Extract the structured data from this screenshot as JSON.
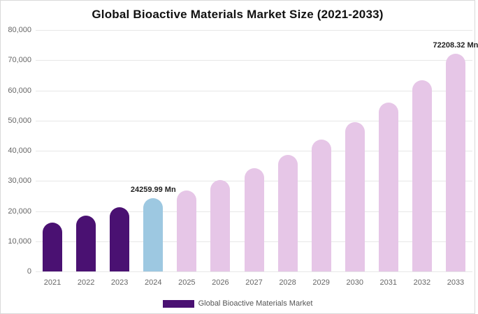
{
  "chart_data": {
    "type": "bar",
    "title": "Global Bioactive Materials Market Size (2021-2033)",
    "legend": "Global Bioactive Materials Market",
    "categories": [
      "2021",
      "2022",
      "2023",
      "2024",
      "2025",
      "2026",
      "2027",
      "2028",
      "2029",
      "2030",
      "2031",
      "2032",
      "2033"
    ],
    "values": [
      16300,
      18600,
      21200,
      24259.99,
      26900,
      30300,
      34200,
      38600,
      43800,
      49500,
      56000,
      63300,
      72208.32
    ],
    "bar_colors": [
      "#4a1172",
      "#4a1172",
      "#4a1172",
      "#9dc8e1",
      "#e6c6e7",
      "#e6c6e7",
      "#e6c6e7",
      "#e6c6e7",
      "#e6c6e7",
      "#e6c6e7",
      "#e6c6e7",
      "#e6c6e7",
      "#e6c6e7"
    ],
    "yticks": [
      "0",
      "10,000",
      "20,000",
      "30,000",
      "40,000",
      "50,000",
      "60,000",
      "70,000",
      "80,000"
    ],
    "ylim": [
      0,
      80000
    ],
    "xlabel": "",
    "ylabel": "",
    "grid": "horizontal",
    "legend_position": "bottom",
    "annotations": [
      {
        "category": "2024",
        "text": "24259.99 Mn"
      },
      {
        "category": "2033",
        "text": "72208.32 Mn"
      }
    ],
    "colors": {
      "historical": "#4a1172",
      "highlight": "#9dc8e1",
      "forecast": "#e6c6e7",
      "gridline": "#e7e7e7",
      "axis_text": "#666666"
    }
  }
}
